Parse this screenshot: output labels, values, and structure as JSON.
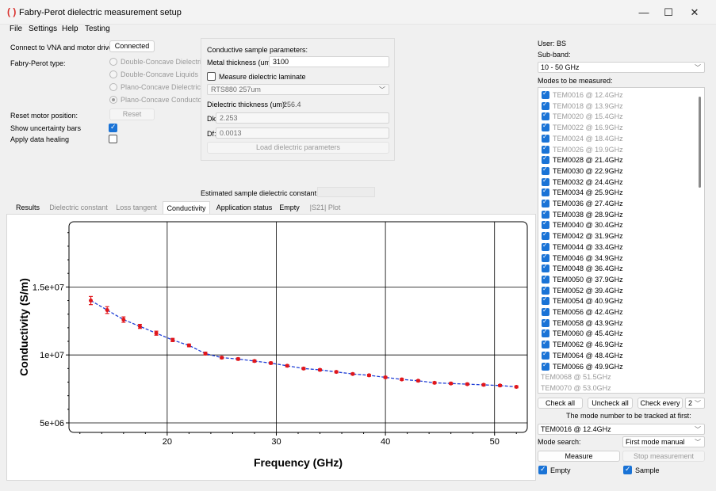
{
  "window": {
    "title": "Fabry-Perot dielectric measurement setup",
    "logo": "( )",
    "min": "—",
    "max": "☐",
    "close": "✕"
  },
  "menu": [
    "File",
    "Settings",
    "Help",
    "Testing"
  ],
  "left": {
    "connect_label": "Connect to VNA and motor driver:",
    "connect_button": "Connected",
    "fp_type_label": "Fabry-Perot type:",
    "fp_types": [
      "Double-Concave Dielectrics",
      "Double-Concave Liquids",
      "Plano-Concave Dielectrics",
      "Plano-Concave Conductors"
    ],
    "reset_label": "Reset motor position:",
    "reset_button": "Reset",
    "uncertainty_label": "Show uncertainty bars",
    "healing_label": "Apply data healing"
  },
  "sample": {
    "heading": "Conductive sample parameters:",
    "metal_label": "Metal thickness (um):",
    "metal_value": "3100",
    "laminate_label": "Measure dielectric laminate",
    "laminate_select": "RTS880 257um",
    "diel_thick_label": "Dielectric thickness (um):",
    "diel_thick_value": "256.4",
    "dk_label": "Dk:",
    "dk_value": "2.253",
    "df_label": "Df:",
    "df_value": "0.0013",
    "load_button": "Load dielectric parameters",
    "estimated_label": "Estimated sample dielectric constant:"
  },
  "tabs": [
    "Results",
    "Dielectric constant",
    "Loss tangent",
    "Conductivity",
    "Application status",
    "Empty",
    "|S21| Plot"
  ],
  "right": {
    "user": "User: BS",
    "subband_label": "Sub-band:",
    "subband_value": "10 - 50 GHz",
    "modes_label": "Modes to be measured:",
    "modes": [
      {
        "label": "TEM0016 @ 12.4GHz",
        "state": "dis"
      },
      {
        "label": "TEM0018 @ 13.9GHz",
        "state": "dis"
      },
      {
        "label": "TEM0020 @ 15.4GHz",
        "state": "dis"
      },
      {
        "label": "TEM0022 @ 16.9GHz",
        "state": "dis"
      },
      {
        "label": "TEM0024 @ 18.4GHz",
        "state": "dis"
      },
      {
        "label": "TEM0026 @ 19.9GHz",
        "state": "dis"
      },
      {
        "label": "TEM0028 @ 21.4GHz",
        "state": "on"
      },
      {
        "label": "TEM0030 @ 22.9GHz",
        "state": "on"
      },
      {
        "label": "TEM0032 @ 24.4GHz",
        "state": "on"
      },
      {
        "label": "TEM0034 @ 25.9GHz",
        "state": "on"
      },
      {
        "label": "TEM0036 @ 27.4GHz",
        "state": "on"
      },
      {
        "label": "TEM0038 @ 28.9GHz",
        "state": "on"
      },
      {
        "label": "TEM0040 @ 30.4GHz",
        "state": "on"
      },
      {
        "label": "TEM0042 @ 31.9GHz",
        "state": "on"
      },
      {
        "label": "TEM0044 @ 33.4GHz",
        "state": "on"
      },
      {
        "label": "TEM0046 @ 34.9GHz",
        "state": "on"
      },
      {
        "label": "TEM0048 @ 36.4GHz",
        "state": "on"
      },
      {
        "label": "TEM0050 @ 37.9GHz",
        "state": "on"
      },
      {
        "label": "TEM0052 @ 39.4GHz",
        "state": "on"
      },
      {
        "label": "TEM0054 @ 40.9GHz",
        "state": "on"
      },
      {
        "label": "TEM0056 @ 42.4GHz",
        "state": "on"
      },
      {
        "label": "TEM0058 @ 43.9GHz",
        "state": "on"
      },
      {
        "label": "TEM0060 @ 45.4GHz",
        "state": "on"
      },
      {
        "label": "TEM0062 @ 46.9GHz",
        "state": "on"
      },
      {
        "label": "TEM0064 @ 48.4GHz",
        "state": "on"
      },
      {
        "label": "TEM0066 @ 49.9GHz",
        "state": "on"
      },
      {
        "label": "TEM0068 @ 51.5GHz",
        "state": "plain"
      },
      {
        "label": "TEM0070 @ 53.0GHz",
        "state": "plain"
      }
    ],
    "check_all": "Check all",
    "uncheck_all": "Uncheck all",
    "check_every": "Check every",
    "check_every_value": "2",
    "track_label": "The mode number to be tracked at first:",
    "track_value": "TEM0016 @ 12.4GHz",
    "mode_search_label": "Mode search:",
    "mode_search_value": "First mode manual",
    "measure": "Measure",
    "stop": "Stop measurement",
    "empty_label": "Empty",
    "sample_label": "Sample"
  },
  "chart_data": {
    "type": "line",
    "xlabel": "Frequency (GHz)",
    "ylabel": "Conductivity (S/m)",
    "xlim": [
      11,
      53
    ],
    "ylim": [
      4300000,
      19800000
    ],
    "xticks": [
      20,
      30,
      40,
      50
    ],
    "yticks": [
      5000000,
      10000000,
      15000000
    ],
    "ytick_labels": [
      "5e+06",
      "1e+07",
      "1.5e+07"
    ],
    "series": [
      {
        "name": "Conductivity",
        "color": "#1f3fd6",
        "marker_color": "#e0161b",
        "x": [
          13.0,
          14.5,
          16.0,
          17.5,
          19.0,
          20.5,
          22.0,
          23.5,
          25.0,
          26.5,
          28.0,
          29.5,
          31.0,
          32.5,
          34.0,
          35.5,
          37.0,
          38.5,
          40.0,
          41.5,
          43.0,
          44.5,
          46.0,
          47.5,
          49.0,
          50.5,
          52.0
        ],
        "y": [
          14000000,
          13300000,
          12600000,
          12100000,
          11600000,
          11100000,
          10700000,
          10100000,
          9800000,
          9700000,
          9550000,
          9400000,
          9200000,
          9000000,
          8900000,
          8750000,
          8600000,
          8500000,
          8350000,
          8200000,
          8100000,
          7950000,
          7900000,
          7850000,
          7800000,
          7750000,
          7650000
        ],
        "err": [
          300000,
          250000,
          200000,
          150000,
          150000,
          120000,
          100000,
          100000,
          80000,
          80000,
          80000,
          80000,
          80000,
          70000,
          70000,
          70000,
          70000,
          70000,
          70000,
          70000,
          70000,
          70000,
          70000,
          70000,
          70000,
          70000,
          70000
        ]
      }
    ]
  }
}
